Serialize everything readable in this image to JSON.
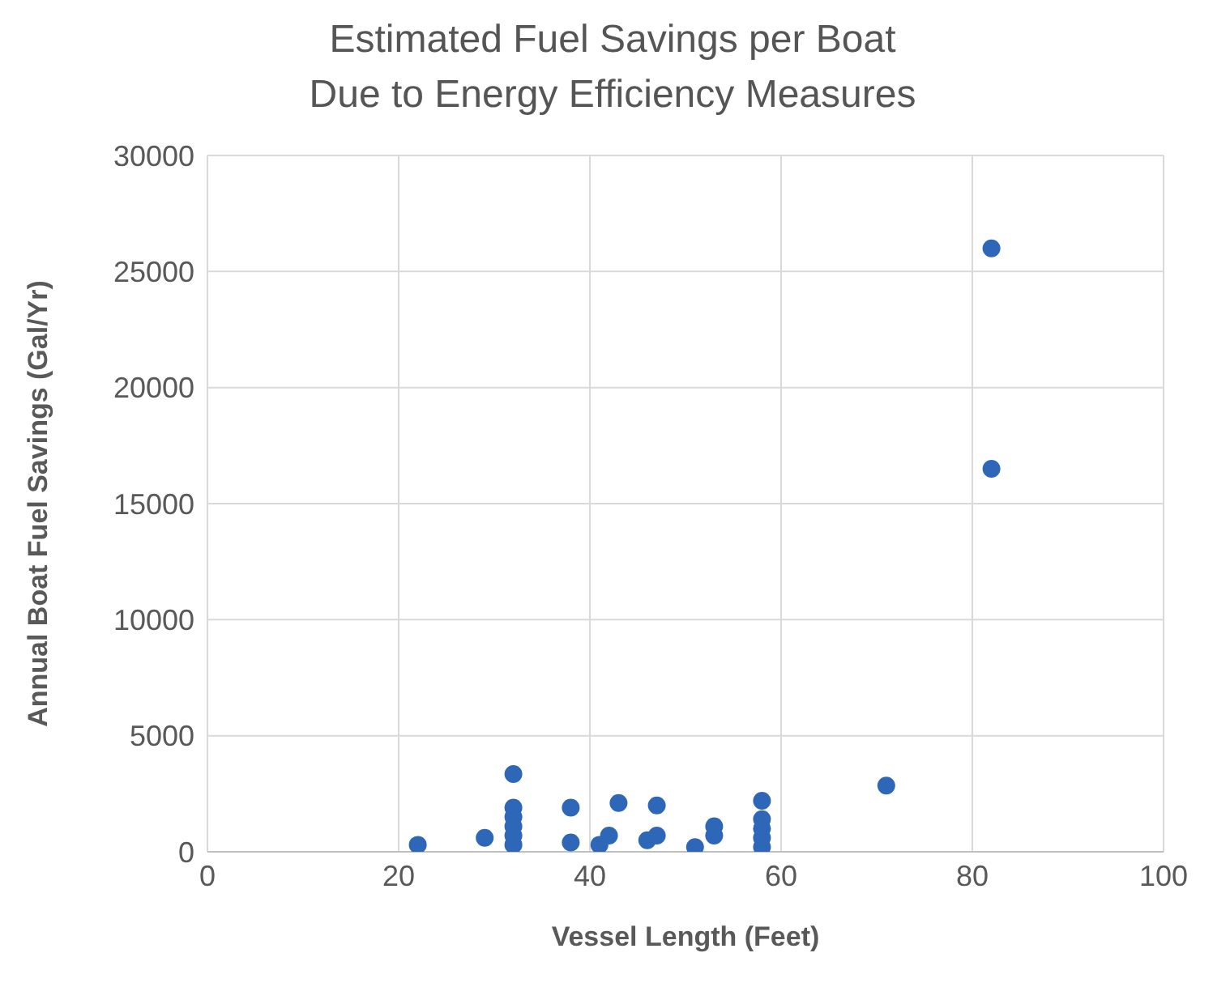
{
  "chart_data": {
    "type": "scatter",
    "title": "Estimated Fuel Savings per Boat\nDue to Energy Efficiency Measures",
    "xlabel": "Vessel Length (Feet)",
    "ylabel": "Annual Boat Fuel Savings (Gal/Yr)",
    "x": [
      22,
      29,
      32,
      32,
      32,
      32,
      32,
      32,
      38,
      38,
      41,
      42,
      43,
      46,
      47,
      47,
      51,
      53,
      53,
      58,
      58,
      58,
      58,
      58,
      71,
      82,
      82
    ],
    "values": [
      300,
      600,
      3350,
      1900,
      1500,
      1100,
      700,
      300,
      1900,
      400,
      300,
      700,
      2100,
      500,
      700,
      2000,
      200,
      700,
      1100,
      2200,
      1400,
      1000,
      600,
      200,
      2850,
      26000,
      16500
    ],
    "color": "#2e67b8",
    "marker": "circle",
    "grid": true,
    "xlim": [
      0,
      100
    ],
    "xticks": [
      0,
      20,
      40,
      60,
      80,
      100
    ],
    "ylim": [
      0,
      30000
    ],
    "yticks": [
      0,
      5000,
      10000,
      15000,
      20000,
      25000,
      30000
    ]
  }
}
